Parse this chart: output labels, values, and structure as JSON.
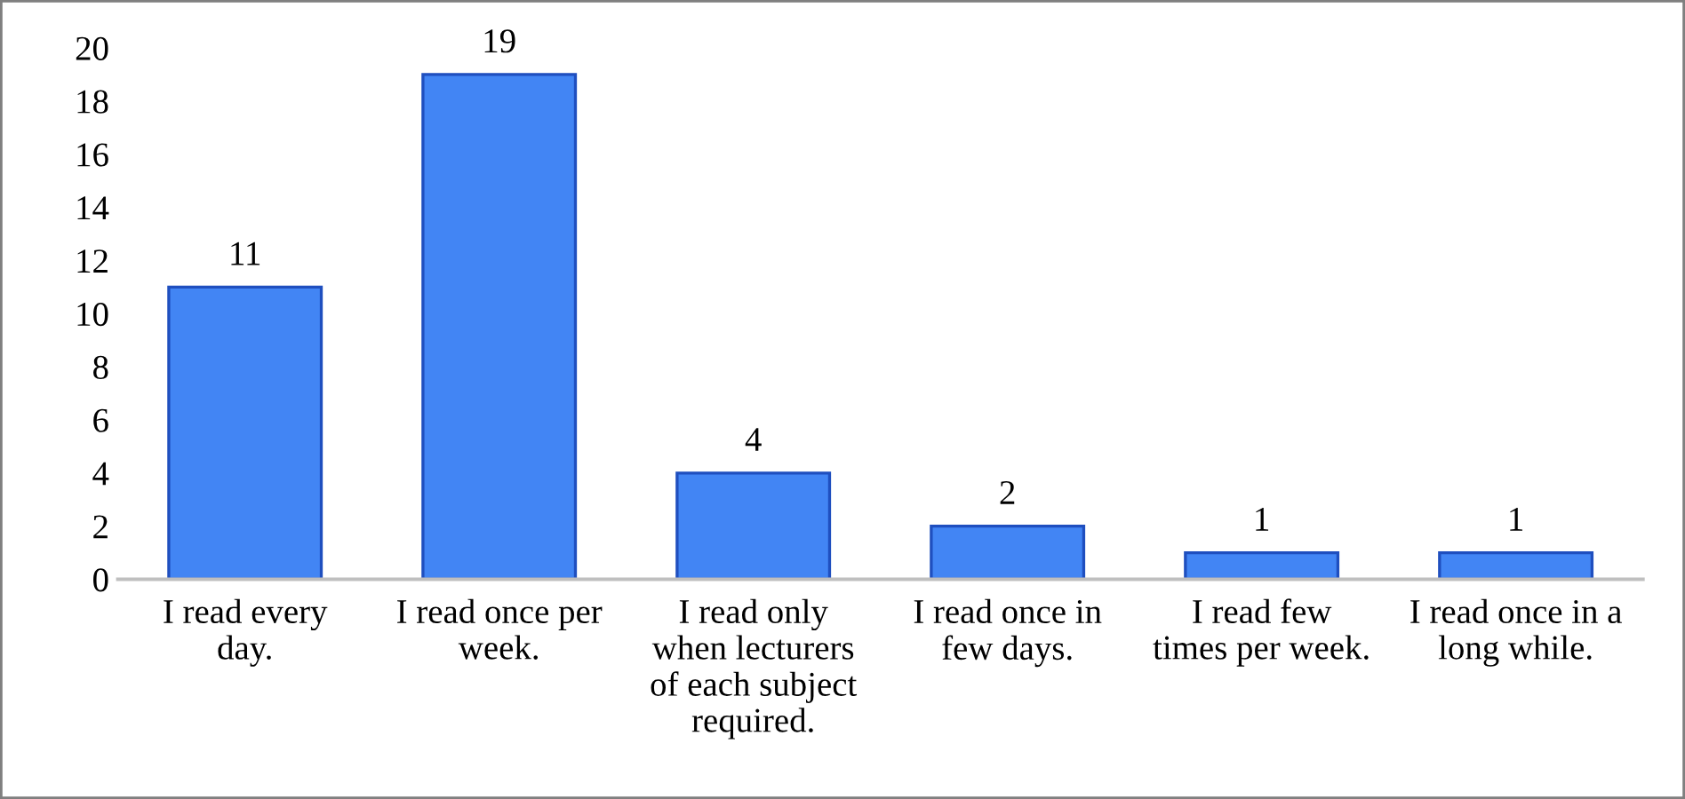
{
  "chart_data": {
    "type": "bar",
    "categories": [
      "I read every\nday.",
      "I read once per\nweek.",
      "I read only\nwhen lecturers\nof each subject\nrequired.",
      "I read once in\nfew days.",
      "I read few\ntimes per week.",
      "I read once in a\nlong while."
    ],
    "values": [
      11,
      19,
      4,
      2,
      1,
      1
    ],
    "color": "#4285f4",
    "ylim": [
      0,
      20
    ],
    "yticks": [
      0,
      2,
      4,
      6,
      8,
      10,
      12,
      14,
      16,
      18,
      20
    ],
    "grid": false,
    "data_labels": true
  }
}
